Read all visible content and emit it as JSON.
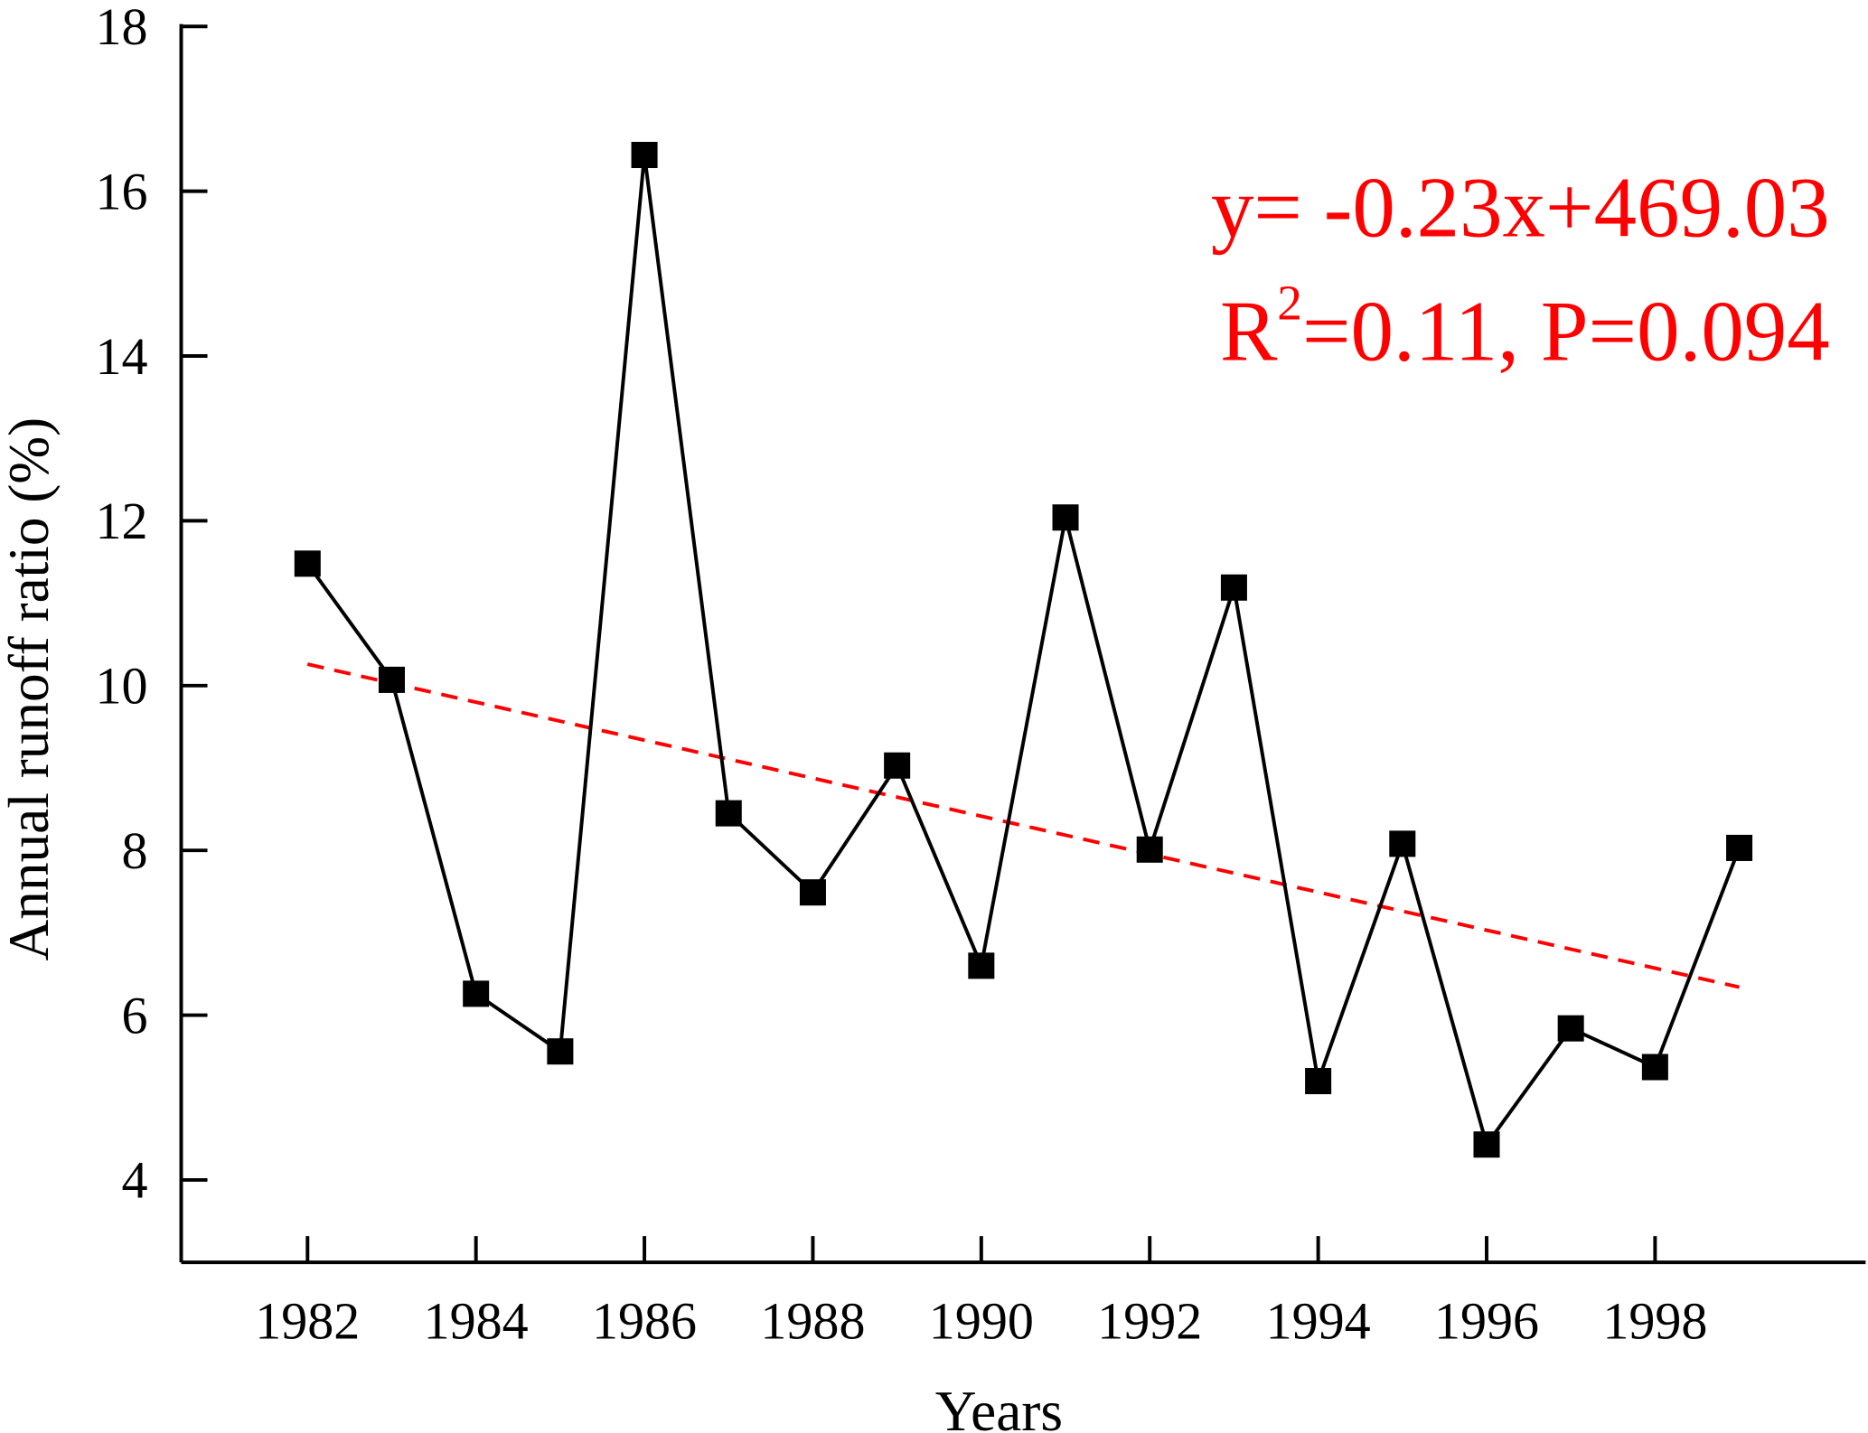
{
  "chart_data": {
    "type": "line",
    "title": "",
    "xlabel": "Years",
    "ylabel": "Annual runoff ratio (%)",
    "xlim": [
      1980.5,
      2000.5
    ],
    "ylim": [
      3,
      18
    ],
    "x_ticks": [
      1982,
      1984,
      1986,
      1988,
      1990,
      1992,
      1994,
      1996,
      1998
    ],
    "y_ticks": [
      4,
      6,
      8,
      10,
      12,
      14,
      16,
      18
    ],
    "grid": false,
    "series": [
      {
        "x": [
          1982,
          1983,
          1984,
          1985,
          1986,
          1987,
          1988,
          1989,
          1990,
          1991,
          1992,
          1993,
          1994,
          1995,
          1996,
          1997,
          1998,
          1999
        ],
        "values": [
          11.48,
          10.07,
          6.26,
          5.56,
          16.44,
          8.45,
          7.49,
          9.03,
          6.6,
          12.04,
          8.01,
          11.19,
          5.2,
          8.08,
          4.43,
          5.84,
          5.37,
          8.03
        ],
        "color": "#000000",
        "marker": "square"
      }
    ],
    "trend_line": {
      "x": [
        1982,
        1999
      ],
      "values": [
        10.26,
        6.34
      ],
      "color": "#ff0000",
      "style": "dashed"
    },
    "annotation": {
      "equation": "y= -0.23x+469.03",
      "r_label": "R",
      "r_sup": "2",
      "stats": "=0.11, P=0.094",
      "color": "#ff0000"
    }
  }
}
